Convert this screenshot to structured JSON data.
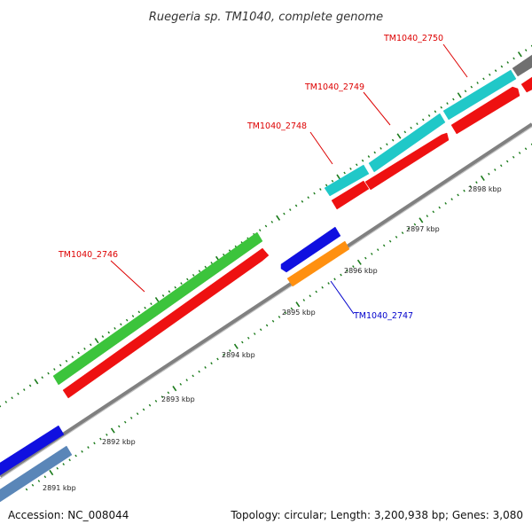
{
  "title": "Ruegeria sp. TM1040, complete genome",
  "footer": {
    "accession": "Accession: NC_008044",
    "topology": "Topology: circular; Length: 3,200,938 bp; Genes: 3,080"
  },
  "colors": {
    "backbone": "#808080",
    "tick_minor": "#1a7a1a",
    "tick_major": "#1a7a1a",
    "label_red": "#dd0000",
    "label_blue": "#0000cc"
  },
  "kbp_marks": [
    {
      "text": "2891 kbp"
    },
    {
      "text": "2892 kbp"
    },
    {
      "text": "2893 kbp"
    },
    {
      "text": "2894 kbp"
    },
    {
      "text": "2895 kbp"
    },
    {
      "text": "2896 kbp"
    },
    {
      "text": "2897 kbp"
    },
    {
      "text": "2898 kbp"
    }
  ],
  "gene_labels": [
    {
      "text": "TM1040_2746",
      "color": "#dd0000"
    },
    {
      "text": "TM1040_2747",
      "color": "#0000cc"
    },
    {
      "text": "TM1040_2748",
      "color": "#dd0000"
    },
    {
      "text": "TM1040_2749",
      "color": "#dd0000"
    },
    {
      "text": "TM1040_2750",
      "color": "#dd0000"
    }
  ],
  "features": [
    {
      "name": "feature-blue-left",
      "color": "#1010e0"
    },
    {
      "name": "feature-steelblue-left",
      "color": "#5a86b8"
    },
    {
      "name": "feature-green-2746",
      "color": "#3cc43c"
    },
    {
      "name": "feature-red-2746",
      "color": "#ee1111"
    },
    {
      "name": "feature-blue-2747",
      "color": "#1010e0"
    },
    {
      "name": "feature-orange-2747",
      "color": "#ff9010"
    },
    {
      "name": "feature-red-2748",
      "color": "#ee1111"
    },
    {
      "name": "feature-cyan-2748",
      "color": "#20c8c8"
    },
    {
      "name": "feature-red-2749",
      "color": "#ee1111"
    },
    {
      "name": "feature-cyan-2749",
      "color": "#20c8c8"
    },
    {
      "name": "feature-red-2750",
      "color": "#ee1111"
    },
    {
      "name": "feature-cyan-2750",
      "color": "#20c8c8"
    },
    {
      "name": "feature-gray-top",
      "color": "#707070"
    }
  ]
}
